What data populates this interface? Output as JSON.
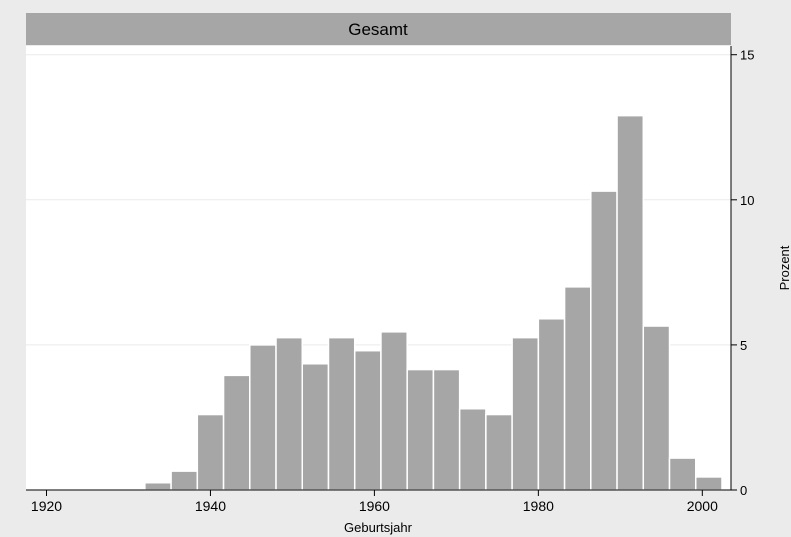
{
  "chart_data": {
    "type": "bar",
    "title": "Gesamt",
    "xlabel": "Geburtsjahr",
    "ylabel": "Prozent",
    "xlim": [
      1917.5,
      2003.5
    ],
    "ylim": [
      0,
      15.3
    ],
    "x_ticks": [
      "1920",
      "1940",
      "1960",
      "1980",
      "2000"
    ],
    "y_ticks": [
      "0",
      "5",
      "10",
      "15"
    ],
    "y_axis_position": "right",
    "grid": true,
    "bin_width": 3.2,
    "bins": [
      {
        "start": 1932.0,
        "value": 0.25
      },
      {
        "start": 1935.2,
        "value": 0.65
      },
      {
        "start": 1938.4,
        "value": 2.6
      },
      {
        "start": 1941.6,
        "value": 3.95
      },
      {
        "start": 1944.8,
        "value": 5.0
      },
      {
        "start": 1948.0,
        "value": 5.25
      },
      {
        "start": 1951.2,
        "value": 4.35
      },
      {
        "start": 1954.4,
        "value": 5.25
      },
      {
        "start": 1957.6,
        "value": 4.8
      },
      {
        "start": 1960.8,
        "value": 5.45
      },
      {
        "start": 1964.0,
        "value": 4.15
      },
      {
        "start": 1967.2,
        "value": 4.15
      },
      {
        "start": 1970.4,
        "value": 2.8
      },
      {
        "start": 1973.6,
        "value": 2.6
      },
      {
        "start": 1976.8,
        "value": 5.25
      },
      {
        "start": 1980.0,
        "value": 5.9
      },
      {
        "start": 1983.2,
        "value": 7.0
      },
      {
        "start": 1986.4,
        "value": 10.3
      },
      {
        "start": 1989.6,
        "value": 12.9
      },
      {
        "start": 1992.8,
        "value": 5.65
      },
      {
        "start": 1996.0,
        "value": 1.1
      },
      {
        "start": 1999.2,
        "value": 0.45
      }
    ],
    "colors": {
      "bar": "#a6a6a6",
      "bar_edge": "#ffffff",
      "strip": "#a6a6a6",
      "plot_bg": "#ffffff",
      "outer_bg": "#ebebeb",
      "grid": "#eaeaea",
      "axis": "#000000"
    }
  }
}
